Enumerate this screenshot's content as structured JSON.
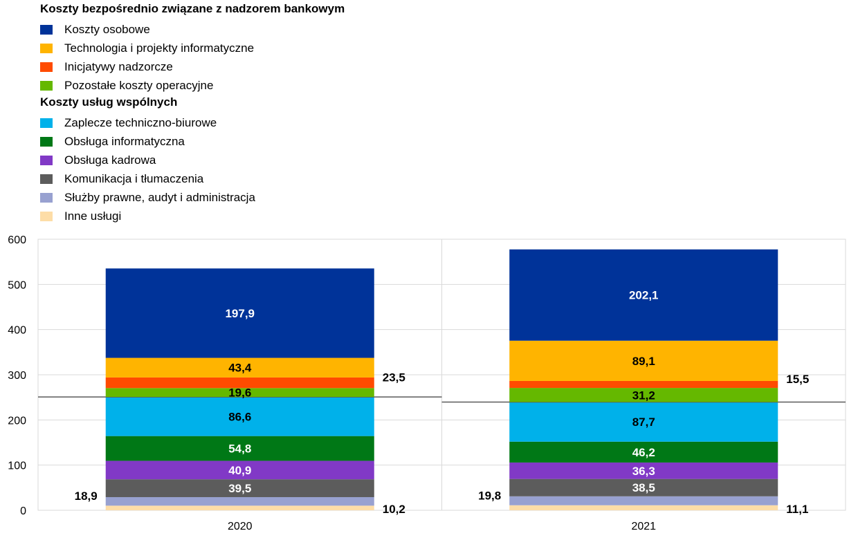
{
  "legend": {
    "groups": [
      {
        "header": "Koszty bezpośrednio związane z nadzorem bankowym",
        "items": [
          {
            "label": "Koszty osobowe",
            "color": "#003399"
          },
          {
            "label": "Technologia i projekty informatyczne",
            "color": "#FFB400"
          },
          {
            "label": "Inicjatywy nadzorcze",
            "color": "#FF4B00"
          },
          {
            "label": "Pozostałe koszty operacyjne",
            "color": "#65B800"
          }
        ]
      },
      {
        "header": "Koszty usług wspólnych",
        "items": [
          {
            "label": "Zaplecze techniczno-biurowe",
            "color": "#00B1EA"
          },
          {
            "label": "Obsługa informatyczna",
            "color": "#007816"
          },
          {
            "label": "Obsługa kadrowa",
            "color": "#8139C6"
          },
          {
            "label": "Komunikacja i tłumaczenia",
            "color": "#5C5C5C"
          },
          {
            "label": "Służby prawne, audyt i administracja",
            "color": "#98A1D0"
          },
          {
            "label": "Inne usługi",
            "color": "#FDDDA7"
          }
        ]
      }
    ]
  },
  "chart_data": {
    "type": "bar",
    "stacked": true,
    "categories": [
      "2020",
      "2021"
    ],
    "ylim": [
      0,
      600
    ],
    "yticks": [
      "0",
      "100",
      "200",
      "300",
      "400",
      "500",
      "600"
    ],
    "grid": true,
    "series": [
      {
        "name": "Inne usługi",
        "color": "#FDDDA7",
        "values": [
          10.2,
          11.1
        ],
        "labels": [
          "10,2",
          "11,1"
        ],
        "label_pos": "outside-right",
        "label_color": "#000000"
      },
      {
        "name": "Służby prawne, audyt i administracja",
        "color": "#98A1D0",
        "values": [
          18.9,
          19.8
        ],
        "labels": [
          "18,9",
          "19,8"
        ],
        "label_pos": "outside-left",
        "label_color": "#000000"
      },
      {
        "name": "Komunikacja i tłumaczenia",
        "color": "#5C5C5C",
        "values": [
          39.5,
          38.5
        ],
        "labels": [
          "39,5",
          "38,5"
        ],
        "label_pos": "inside",
        "label_color": "#FFFFFF"
      },
      {
        "name": "Obsługa kadrowa",
        "color": "#8139C6",
        "values": [
          40.9,
          36.3
        ],
        "labels": [
          "40,9",
          "36,3"
        ],
        "label_pos": "inside",
        "label_color": "#FFFFFF"
      },
      {
        "name": "Obsługa informatyczna",
        "color": "#007816",
        "values": [
          54.8,
          46.2
        ],
        "labels": [
          "54,8",
          "46,2"
        ],
        "label_pos": "inside",
        "label_color": "#FFFFFF"
      },
      {
        "name": "Zaplecze techniczno-biurowe",
        "color": "#00B1EA",
        "values": [
          86.6,
          87.7
        ],
        "labels": [
          "86,6",
          "87,7"
        ],
        "label_pos": "inside",
        "label_color": "#000000"
      },
      {
        "name": "Pozostałe koszty operacyjne",
        "color": "#65B800",
        "values": [
          19.6,
          31.2
        ],
        "labels": [
          "19,6",
          "31,2"
        ],
        "label_pos": "inside",
        "label_color": "#000000"
      },
      {
        "name": "Inicjatywy nadzorcze",
        "color": "#FF4B00",
        "values": [
          23.5,
          15.5
        ],
        "labels": [
          "23,5",
          "15,5"
        ],
        "label_pos": "outside-right",
        "label_color": "#000000"
      },
      {
        "name": "Technologia i projekty informatyczne",
        "color": "#FFB400",
        "values": [
          43.4,
          89.1
        ],
        "labels": [
          "43,4",
          "89,1"
        ],
        "label_pos": "inside",
        "label_color": "#000000"
      },
      {
        "name": "Koszty osobowe",
        "color": "#003399",
        "values": [
          197.9,
          202.1
        ],
        "labels": [
          "197,9",
          "202,1"
        ],
        "label_pos": "inside",
        "label_color": "#FFFFFF"
      }
    ],
    "divider_series_index": 6
  }
}
